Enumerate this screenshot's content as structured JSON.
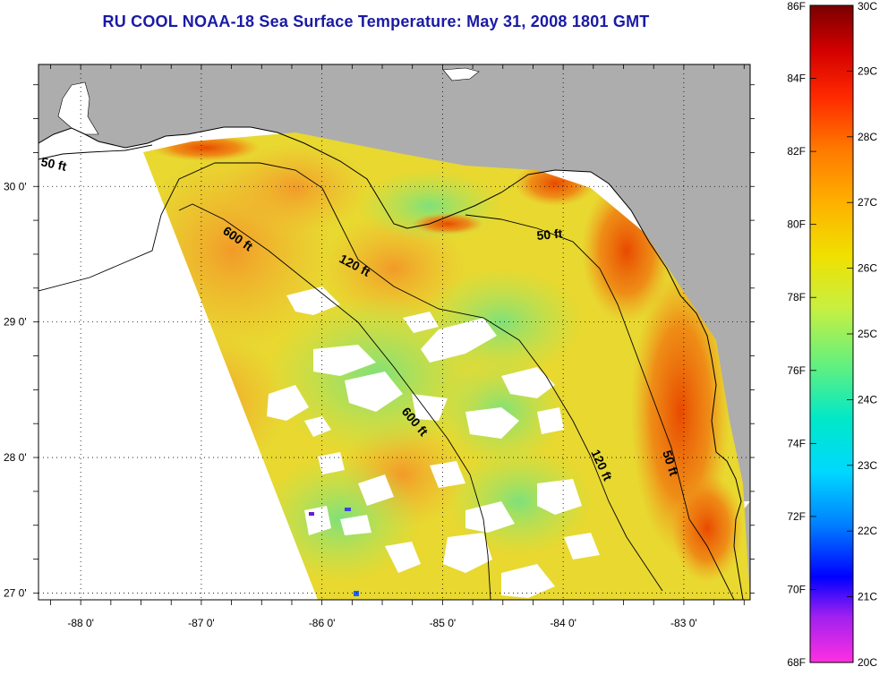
{
  "title": "RU COOL  NOAA-18  Sea Surface Temperature:  May 31, 2008 1801 GMT",
  "map": {
    "lon_min": -88.35,
    "lon_max": -82.45,
    "lat_min": 26.95,
    "lat_max": 30.9,
    "lon_ticks": [
      "-88 0'",
      "-87 0'",
      "-86 0'",
      "-85 0'",
      "-84 0'",
      "-83 0'"
    ],
    "lon_tick_values": [
      -88,
      -87,
      -86,
      -85,
      -84,
      -83
    ],
    "lat_ticks": [
      "30 0'",
      "29 0'",
      "28 0'",
      "27 0'"
    ],
    "lat_tick_values": [
      30,
      29,
      28,
      27
    ],
    "land_color": "#adadad",
    "cloud_color": "#ffffff",
    "contours": [
      {
        "label": "50 ft",
        "depth_ft": 50
      },
      {
        "label": "120 ft",
        "depth_ft": 120
      },
      {
        "label": "600 ft",
        "depth_ft": 600
      },
      {
        "label": "50 ft",
        "depth_ft": 50
      },
      {
        "label": "600 ft",
        "depth_ft": 600
      },
      {
        "label": "120 ft",
        "depth_ft": 120
      },
      {
        "label": "50 ft",
        "depth_ft": 50
      }
    ]
  },
  "colorbar": {
    "fahrenheit_labels": [
      "86F",
      "84F",
      "82F",
      "80F",
      "78F",
      "76F",
      "74F",
      "72F",
      "70F",
      "68F"
    ],
    "celsius_labels": [
      "30C",
      "29C",
      "28C",
      "27C",
      "26C",
      "25C",
      "24C",
      "23C",
      "22C",
      "21C",
      "20C"
    ],
    "stops": [
      "#7a0000",
      "#d40000",
      "#ff2a00",
      "#ff7a00",
      "#ffb000",
      "#f0e000",
      "#c8f040",
      "#60f080",
      "#00e8c8",
      "#00d8ff",
      "#0080ff",
      "#0000ff",
      "#a020f0",
      "#ff30e0"
    ]
  }
}
